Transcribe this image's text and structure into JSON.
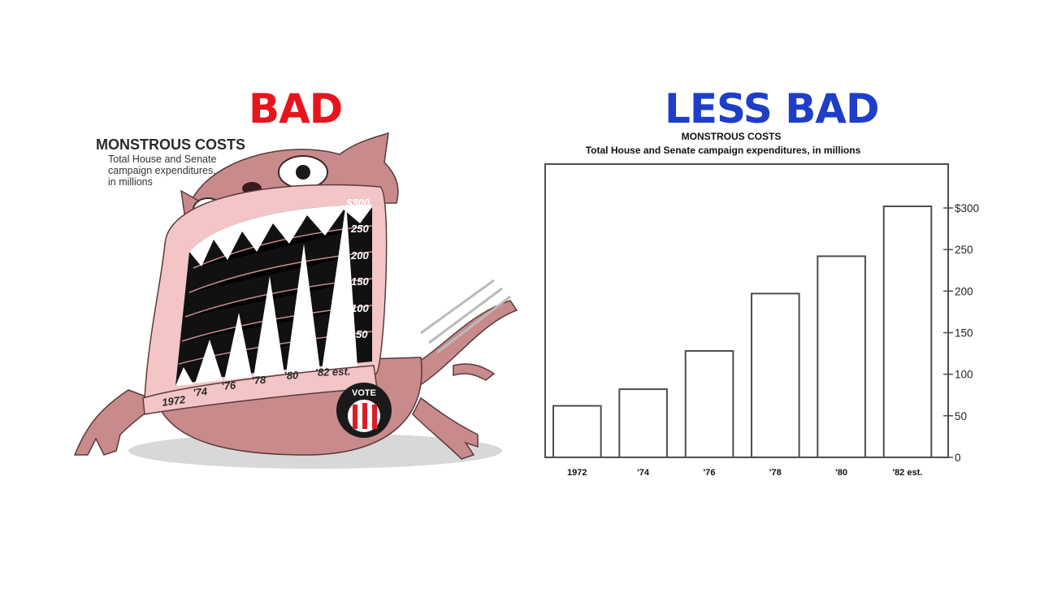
{
  "headings": {
    "bad": "BAD",
    "less_bad": "LESS BAD"
  },
  "colors": {
    "bad": "#e8141c",
    "less_bad": "#1f3ec7",
    "monster": "#c98a8c",
    "monster_mouth": "#f3c5c6",
    "bar_stroke": "#4a4f4a"
  },
  "monster_chart": {
    "title": "MONSTROUS COSTS",
    "subtitle_lines": [
      "Total House and Senate",
      "campaign expenditures,",
      "in millions"
    ],
    "y_labels": [
      "$300",
      "250",
      "200",
      "150",
      "100",
      "50"
    ],
    "x_labels": [
      "1972",
      "'74",
      "'76",
      "'78",
      "'80",
      "'82 est."
    ],
    "badge_text": "VOTE"
  },
  "chart_data": {
    "type": "bar",
    "title": "MONSTROUS COSTS",
    "subtitle": "Total House and Senate campaign expenditures, in millions",
    "categories": [
      "1972",
      "'74",
      "'76",
      "'78",
      "'80",
      "'82 est."
    ],
    "values": [
      62,
      82,
      128,
      197,
      242,
      302
    ],
    "ylim": [
      0,
      350
    ],
    "yticks": [
      0,
      50,
      100,
      150,
      200,
      250,
      300
    ],
    "ytick_labels": [
      "0",
      "50",
      "100",
      "150",
      "200",
      "250",
      "$300"
    ],
    "ytick_side": "right",
    "grid": false,
    "legend": "none"
  }
}
